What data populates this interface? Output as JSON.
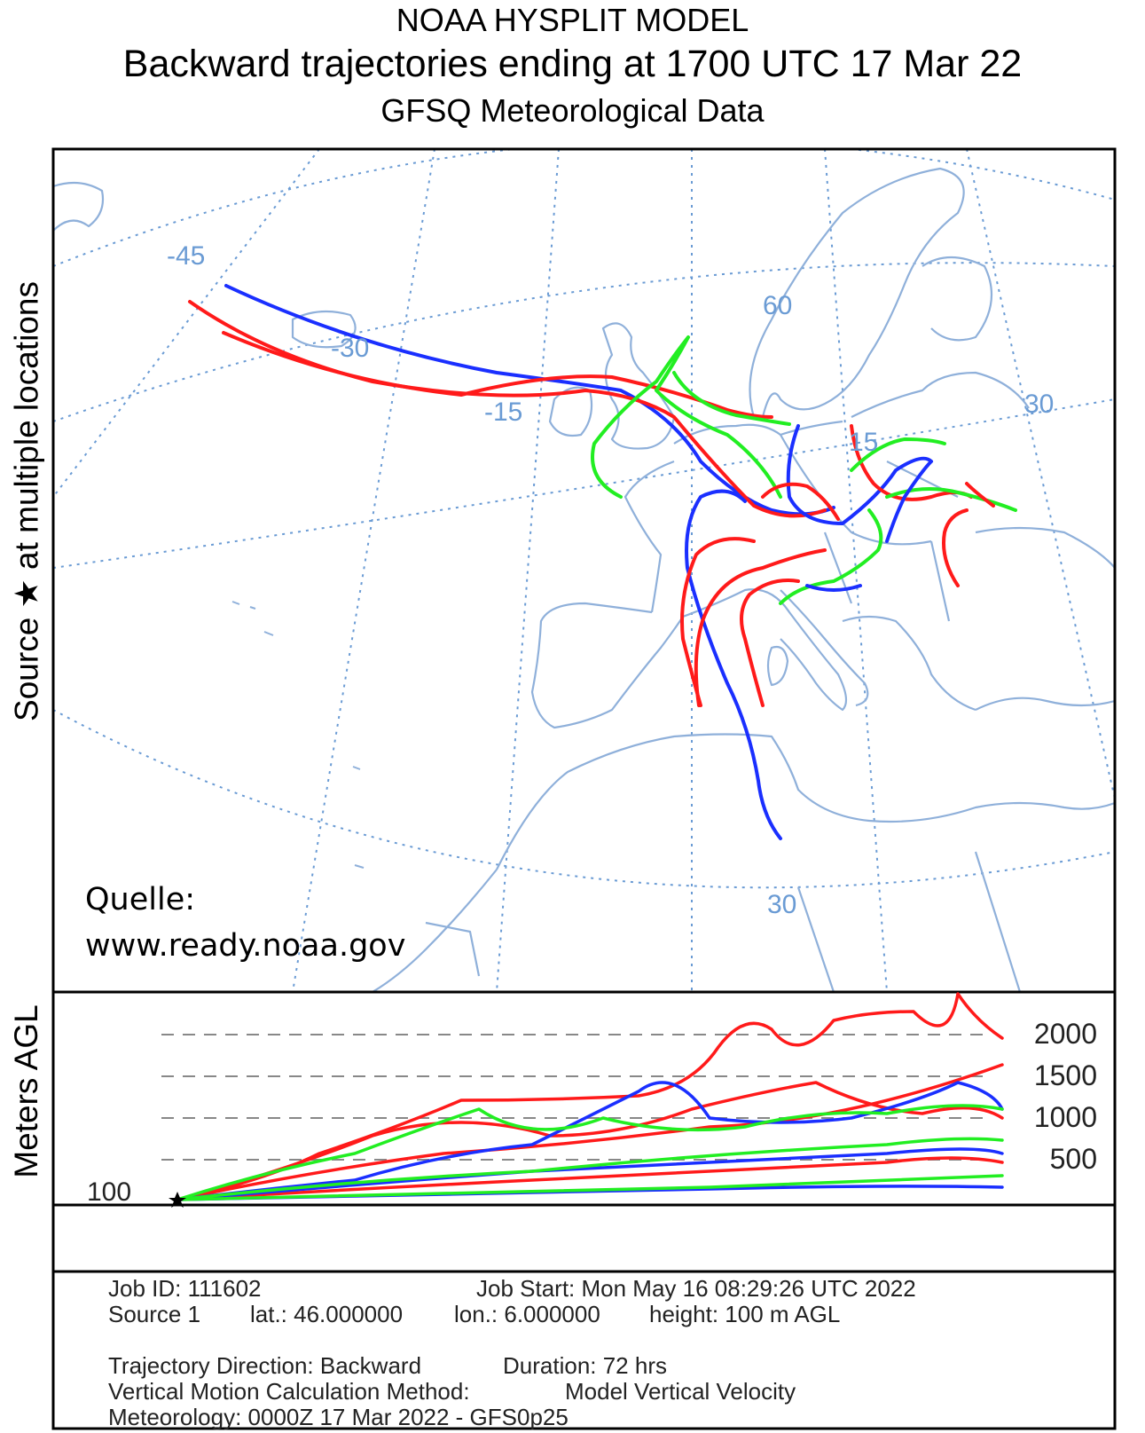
{
  "header": {
    "title": "NOAA HYSPLIT MODEL",
    "subtitle": "Backward trajectories ending at 1700 UTC 17 Mar 22",
    "data_source": "GFSQ Meteorological Data"
  },
  "map": {
    "side_label": "Source ★ at multiple locations",
    "longitude_labels": [
      "-45",
      "-30",
      "-15",
      "15",
      "30"
    ],
    "latitude_labels": [
      "60",
      "30"
    ],
    "credit_line1": "Quelle:",
    "credit_line2": "www.ready.noaa.gov",
    "colors": {
      "graticule": "#6a9bd4",
      "coast": "#8fb0da",
      "traj_red": "#ff1a1a",
      "traj_blue": "#1a2fff",
      "traj_green": "#22ee22"
    }
  },
  "height_panel": {
    "axis_label": "Meters AGL",
    "source_height_label": "100",
    "tick_labels": [
      "2000",
      "1500",
      "1000",
      "500"
    ],
    "source_marker_icon": "star-icon"
  },
  "footer": {
    "job_id": "Job ID: 111602",
    "job_start": "Job Start: Mon May 16 08:29:26 UTC 2022",
    "source": "Source 1",
    "lat": "lat.: 46.000000",
    "lon": "lon.: 6.000000",
    "height": "height: 100 m AGL",
    "direction": "Trajectory Direction: Backward",
    "duration": "Duration: 72 hrs",
    "vertical_method_label": "Vertical Motion Calculation Method:",
    "vertical_method_value": "Model Vertical Velocity",
    "meteorology": "Meteorology: 0000Z 17 Mar 2022 - GFS0p25"
  }
}
